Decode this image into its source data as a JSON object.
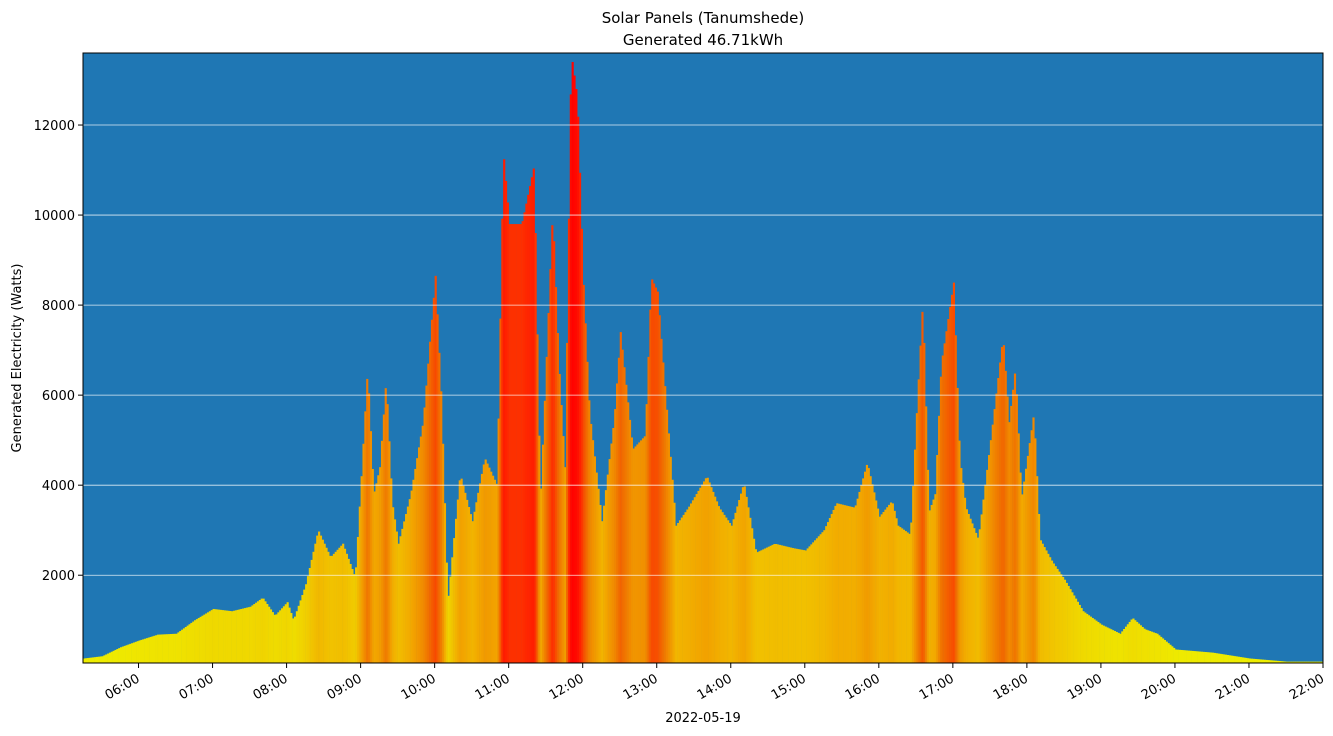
{
  "chart_data": {
    "type": "bar",
    "title": "Solar Panels (Tanumshede)",
    "subtitle": "Generated 46.71kWh",
    "xlabel": "2022-05-19",
    "ylabel": "Generated Electricity (Watts)",
    "x_range": [
      "05:15",
      "22:00"
    ],
    "ylim": [
      50,
      13600
    ],
    "yticks": [
      2000,
      4000,
      6000,
      8000,
      10000,
      12000
    ],
    "xticks": [
      "06:00",
      "07:00",
      "08:00",
      "09:00",
      "10:00",
      "11:00",
      "12:00",
      "13:00",
      "14:00",
      "15:00",
      "16:00",
      "17:00",
      "18:00",
      "19:00",
      "20:00",
      "21:00",
      "22:00"
    ],
    "grid": "horizontal",
    "background_color": "#1f77b4",
    "bar_colormap": [
      "#eef000",
      "#f2b000",
      "#f07000",
      "#ff2800",
      "#ff0000"
    ],
    "series": [
      {
        "points": [
          [
            "05:15",
            150
          ],
          [
            "05:30",
            200
          ],
          [
            "05:45",
            400
          ],
          [
            "06:00",
            550
          ],
          [
            "06:15",
            680
          ],
          [
            "06:30",
            700
          ],
          [
            "06:45",
            1000
          ],
          [
            "07:00",
            1250
          ],
          [
            "07:15",
            1200
          ],
          [
            "07:30",
            1300
          ],
          [
            "07:40",
            1500
          ],
          [
            "07:50",
            1100
          ],
          [
            "08:00",
            1400
          ],
          [
            "08:05",
            1000
          ],
          [
            "08:15",
            1800
          ],
          [
            "08:25",
            3000
          ],
          [
            "08:35",
            2400
          ],
          [
            "08:45",
            2700
          ],
          [
            "08:55",
            1950
          ],
          [
            "09:00",
            4200
          ],
          [
            "09:05",
            6600
          ],
          [
            "09:10",
            3800
          ],
          [
            "09:15",
            4400
          ],
          [
            "09:20",
            6350
          ],
          [
            "09:25",
            3600
          ],
          [
            "09:30",
            2700
          ],
          [
            "09:40",
            3800
          ],
          [
            "09:50",
            5400
          ],
          [
            "10:00",
            8650
          ],
          [
            "10:05",
            5800
          ],
          [
            "10:10",
            1400
          ],
          [
            "10:20",
            4250
          ],
          [
            "10:30",
            3200
          ],
          [
            "10:40",
            4600
          ],
          [
            "10:50",
            4000
          ],
          [
            "10:55",
            11400
          ],
          [
            "11:00",
            9800
          ],
          [
            "11:10",
            9800
          ],
          [
            "11:20",
            11100
          ],
          [
            "11:25",
            3600
          ],
          [
            "11:35",
            10100
          ],
          [
            "11:40",
            6700
          ],
          [
            "11:45",
            4400
          ],
          [
            "11:50",
            13600
          ],
          [
            "11:55",
            12600
          ],
          [
            "12:00",
            8450
          ],
          [
            "12:05",
            5600
          ],
          [
            "12:15",
            3200
          ],
          [
            "12:25",
            5500
          ],
          [
            "12:30",
            7400
          ],
          [
            "12:40",
            4800
          ],
          [
            "12:50",
            5100
          ],
          [
            "12:55",
            8600
          ],
          [
            "13:00",
            8300
          ],
          [
            "13:10",
            4800
          ],
          [
            "13:15",
            3100
          ],
          [
            "13:25",
            3500
          ],
          [
            "13:40",
            4200
          ],
          [
            "13:50",
            3500
          ],
          [
            "14:00",
            3100
          ],
          [
            "14:10",
            4050
          ],
          [
            "14:20",
            2500
          ],
          [
            "14:35",
            2700
          ],
          [
            "14:50",
            2600
          ],
          [
            "15:00",
            2550
          ],
          [
            "15:15",
            3000
          ],
          [
            "15:25",
            3600
          ],
          [
            "15:40",
            3500
          ],
          [
            "15:50",
            4500
          ],
          [
            "16:00",
            3300
          ],
          [
            "16:10",
            3650
          ],
          [
            "16:15",
            3100
          ],
          [
            "16:25",
            2900
          ],
          [
            "16:30",
            5600
          ],
          [
            "16:35",
            8100
          ],
          [
            "16:40",
            3400
          ],
          [
            "16:45",
            3800
          ],
          [
            "16:50",
            6700
          ],
          [
            "17:00",
            8500
          ],
          [
            "17:05",
            4600
          ],
          [
            "17:10",
            3500
          ],
          [
            "17:20",
            2800
          ],
          [
            "17:30",
            5000
          ],
          [
            "17:40",
            7300
          ],
          [
            "17:45",
            5400
          ],
          [
            "17:50",
            6600
          ],
          [
            "17:55",
            3700
          ],
          [
            "18:05",
            5600
          ],
          [
            "18:10",
            2800
          ],
          [
            "18:20",
            2300
          ],
          [
            "18:30",
            1900
          ],
          [
            "18:45",
            1200
          ],
          [
            "19:00",
            900
          ],
          [
            "19:15",
            700
          ],
          [
            "19:25",
            1050
          ],
          [
            "19:35",
            800
          ],
          [
            "19:45",
            700
          ],
          [
            "20:00",
            350
          ],
          [
            "20:30",
            280
          ],
          [
            "21:00",
            150
          ],
          [
            "21:30",
            80
          ],
          [
            "22:00",
            80
          ]
        ]
      }
    ]
  }
}
